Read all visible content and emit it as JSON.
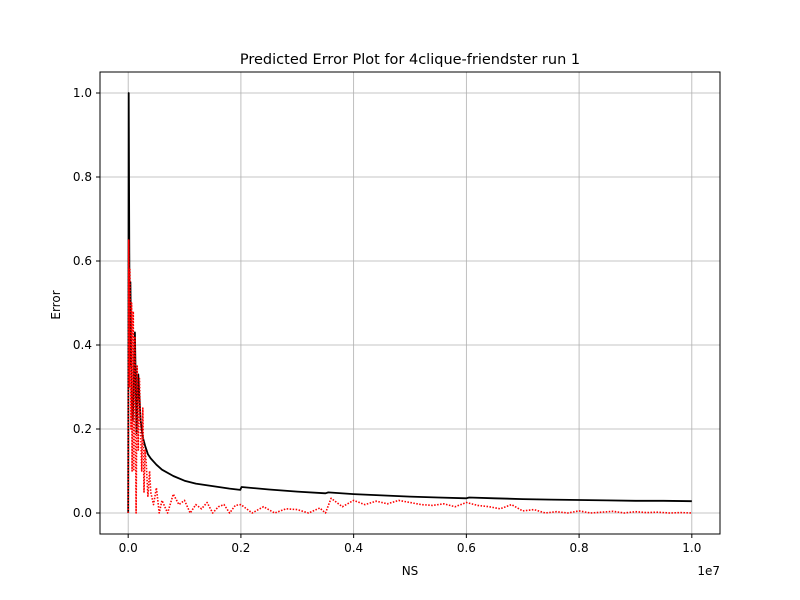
{
  "chart_data": {
    "type": "line",
    "title": "Predicted Error Plot for 4clique-friendster run 1",
    "xlabel": "NS",
    "ylabel": "Error",
    "x_offset_label": "1e7",
    "xlim": [
      -0.05,
      1.05
    ],
    "ylim": [
      -0.05,
      1.05
    ],
    "grid": true,
    "x_ticks": [
      0.0,
      0.2,
      0.4,
      0.6,
      0.8,
      1.0
    ],
    "x_tick_labels": [
      "0.0",
      "0.2",
      "0.4",
      "0.6",
      "0.8",
      "1.0"
    ],
    "y_ticks": [
      0.0,
      0.2,
      0.4,
      0.6,
      0.8,
      1.0
    ],
    "y_tick_labels": [
      "0.0",
      "0.2",
      "0.4",
      "0.6",
      "0.8",
      "1.0"
    ],
    "series": [
      {
        "color": "#000000",
        "style": "solid",
        "x": [
          0.0,
          0.001,
          0.002,
          0.003,
          0.004,
          0.006,
          0.008,
          0.01,
          0.012,
          0.015,
          0.018,
          0.022,
          0.026,
          0.03,
          0.035,
          0.04,
          0.05,
          0.06,
          0.08,
          0.1,
          0.12,
          0.15,
          0.18,
          0.199,
          0.201,
          0.25,
          0.3,
          0.35,
          0.355,
          0.4,
          0.45,
          0.5,
          0.55,
          0.6,
          0.605,
          0.65,
          0.7,
          0.75,
          0.8,
          0.85,
          0.9,
          0.95,
          1.0
        ],
        "y": [
          0.0,
          1.0,
          0.62,
          0.35,
          0.55,
          0.28,
          0.22,
          0.3,
          0.43,
          0.19,
          0.33,
          0.22,
          0.18,
          0.16,
          0.14,
          0.13,
          0.115,
          0.103,
          0.088,
          0.077,
          0.07,
          0.064,
          0.058,
          0.055,
          0.062,
          0.056,
          0.051,
          0.047,
          0.049,
          0.045,
          0.042,
          0.039,
          0.037,
          0.035,
          0.037,
          0.035,
          0.033,
          0.032,
          0.031,
          0.03,
          0.029,
          0.029,
          0.028
        ]
      },
      {
        "color": "#ff0000",
        "style": "dotted",
        "x": [
          0.0,
          0.001,
          0.002,
          0.003,
          0.004,
          0.005,
          0.006,
          0.007,
          0.008,
          0.009,
          0.01,
          0.012,
          0.014,
          0.016,
          0.018,
          0.02,
          0.022,
          0.024,
          0.026,
          0.028,
          0.03,
          0.032,
          0.035,
          0.038,
          0.04,
          0.045,
          0.05,
          0.055,
          0.06,
          0.07,
          0.08,
          0.09,
          0.1,
          0.11,
          0.12,
          0.13,
          0.14,
          0.15,
          0.16,
          0.17,
          0.18,
          0.19,
          0.2,
          0.22,
          0.24,
          0.26,
          0.28,
          0.3,
          0.32,
          0.34,
          0.35,
          0.36,
          0.38,
          0.4,
          0.42,
          0.44,
          0.46,
          0.48,
          0.5,
          0.52,
          0.54,
          0.56,
          0.58,
          0.6,
          0.62,
          0.64,
          0.66,
          0.68,
          0.7,
          0.72,
          0.74,
          0.76,
          0.78,
          0.8,
          0.82,
          0.84,
          0.86,
          0.88,
          0.9,
          0.92,
          0.94,
          0.96,
          0.98,
          1.0
        ],
        "y": [
          0.0,
          0.65,
          0.3,
          0.58,
          0.45,
          0.2,
          0.5,
          0.1,
          0.38,
          0.48,
          0.1,
          0.42,
          0.0,
          0.35,
          0.15,
          0.32,
          0.2,
          0.1,
          0.25,
          0.05,
          0.15,
          0.12,
          0.04,
          0.1,
          0.05,
          0.02,
          0.06,
          0.0,
          0.03,
          0.0,
          0.045,
          0.02,
          0.03,
          0.0,
          0.02,
          0.01,
          0.025,
          0.0,
          0.015,
          0.02,
          0.0,
          0.018,
          0.02,
          0.0,
          0.015,
          0.0,
          0.01,
          0.008,
          0.0,
          0.012,
          0.0,
          0.035,
          0.015,
          0.03,
          0.02,
          0.028,
          0.022,
          0.03,
          0.025,
          0.02,
          0.018,
          0.022,
          0.015,
          0.025,
          0.018,
          0.015,
          0.01,
          0.02,
          0.005,
          0.008,
          0.0,
          0.003,
          0.0,
          0.005,
          0.0,
          0.002,
          0.004,
          0.0,
          0.003,
          0.001,
          0.002,
          0.0,
          0.001,
          0.0
        ]
      }
    ]
  }
}
